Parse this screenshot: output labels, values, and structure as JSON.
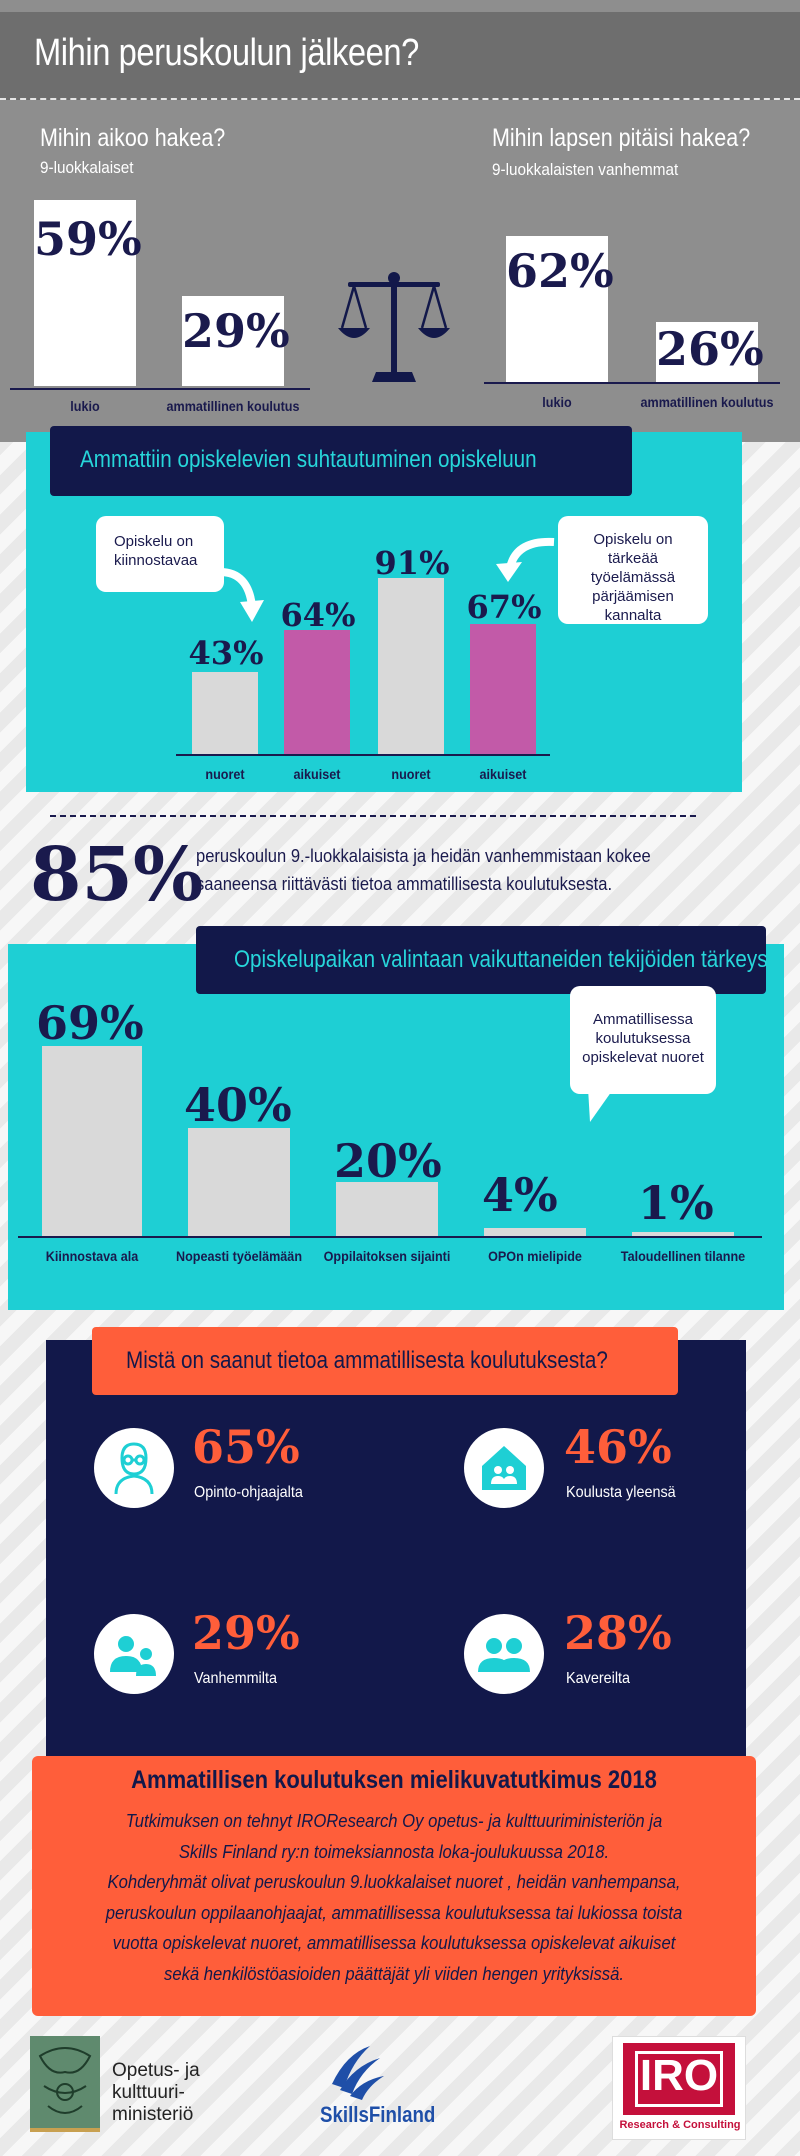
{
  "title": "Mihin peruskoulun jälkeen?",
  "students": {
    "title": "Mihin aikoo hakea?",
    "subtitle": "9-luokkalaiset",
    "bars": [
      {
        "label": "lukio",
        "value": "59%"
      },
      {
        "label": "ammatillinen koulutus",
        "value": "29%"
      }
    ]
  },
  "parents": {
    "title": "Mihin lapsen pitäisi hakea?",
    "subtitle": "9-luokkalaisten vanhemmat",
    "bars": [
      {
        "label": "lukio",
        "value": "62%"
      },
      {
        "label": "ammatillinen koulutus",
        "value": "26%"
      }
    ]
  },
  "scale_icon": "scale-icon",
  "attitude": {
    "title": "Ammattiin opiskelevien suhtautuminen opiskeluun",
    "bubble_left": "Opiskelu on kiinnostavaa",
    "bubble_right": "Opiskelu on tärkeää työelämässä pärjäämisen kannalta",
    "bars": [
      {
        "label": "nuoret",
        "value": "43%"
      },
      {
        "label": "aikuiset",
        "value": "64%"
      },
      {
        "label": "nuoret",
        "value": "91%"
      },
      {
        "label": "aikuiset",
        "value": "67%"
      }
    ]
  },
  "stat85": {
    "value": "85%",
    "text": "peruskoulun 9.-luokkalaisista ja heidän vanhemmistaan kokee saaneensa riittävästi tietoa ammatillisesta koulutuksesta."
  },
  "factors": {
    "title": "Opiskelupaikan valintaan vaikuttaneiden tekijöiden tärkeys",
    "bubble": "Ammatillisessa koulutuksessa opiskelevat nuoret",
    "bars": [
      {
        "label": "Kiinnostava ala",
        "value": "69%"
      },
      {
        "label": "Nopeasti työelämään",
        "value": "40%"
      },
      {
        "label": "Oppilaitoksen sijainti",
        "value": "20%"
      },
      {
        "label": "OPOn mielipide",
        "value": "4%"
      },
      {
        "label": "Taloudellinen tilanne",
        "value": "1%"
      }
    ]
  },
  "sources": {
    "title": "Mistä on saanut tietoa ammatillisesta koulutuksesta?",
    "items": [
      {
        "value": "65%",
        "label": "Opinto-ohjaajalta",
        "icon": "advisor-icon"
      },
      {
        "value": "46%",
        "label": "Koulusta yleensä",
        "icon": "school-icon"
      },
      {
        "value": "29%",
        "label": "Vanhemmilta",
        "icon": "parents-icon"
      },
      {
        "value": "28%",
        "label": "Kavereilta",
        "icon": "friends-icon"
      }
    ]
  },
  "study": {
    "title": "Ammatillisen koulutuksen mielikuvatutkimus 2018",
    "lines": [
      "Tutkimuksen on tehnyt IROResearch Oy opetus- ja kulttuuriministeriön ja",
      "Skills Finland ry:n toimeksiannosta loka-joulukuussa 2018.",
      "Kohderyhmät olivat  peruskoulun 9.luokkalaiset nuoret , heidän vanhempansa,",
      "peruskoulun oppilaanohjaajat, ammatillisessa koulutuksessa tai lukiossa toista",
      "vuotta opiskelevat nuoret,  ammatillisessa koulutuksessa opiskelevat aikuiset",
      "sekä henkilöstöasioiden päättäjät yli viiden hengen yrityksissä."
    ]
  },
  "logos": {
    "okm": [
      "Opetus- ja",
      "kulttuuri-",
      "ministeriö"
    ],
    "skills": "SkillsFinland",
    "iro": "IRO",
    "iro_sub": "Research & Consulting"
  },
  "colors": {
    "navy": "#12184a",
    "cyan": "#1ecfd4",
    "magenta": "#c25aa8",
    "orange": "#ff5e3a",
    "grey": "#8e8e8e"
  }
}
